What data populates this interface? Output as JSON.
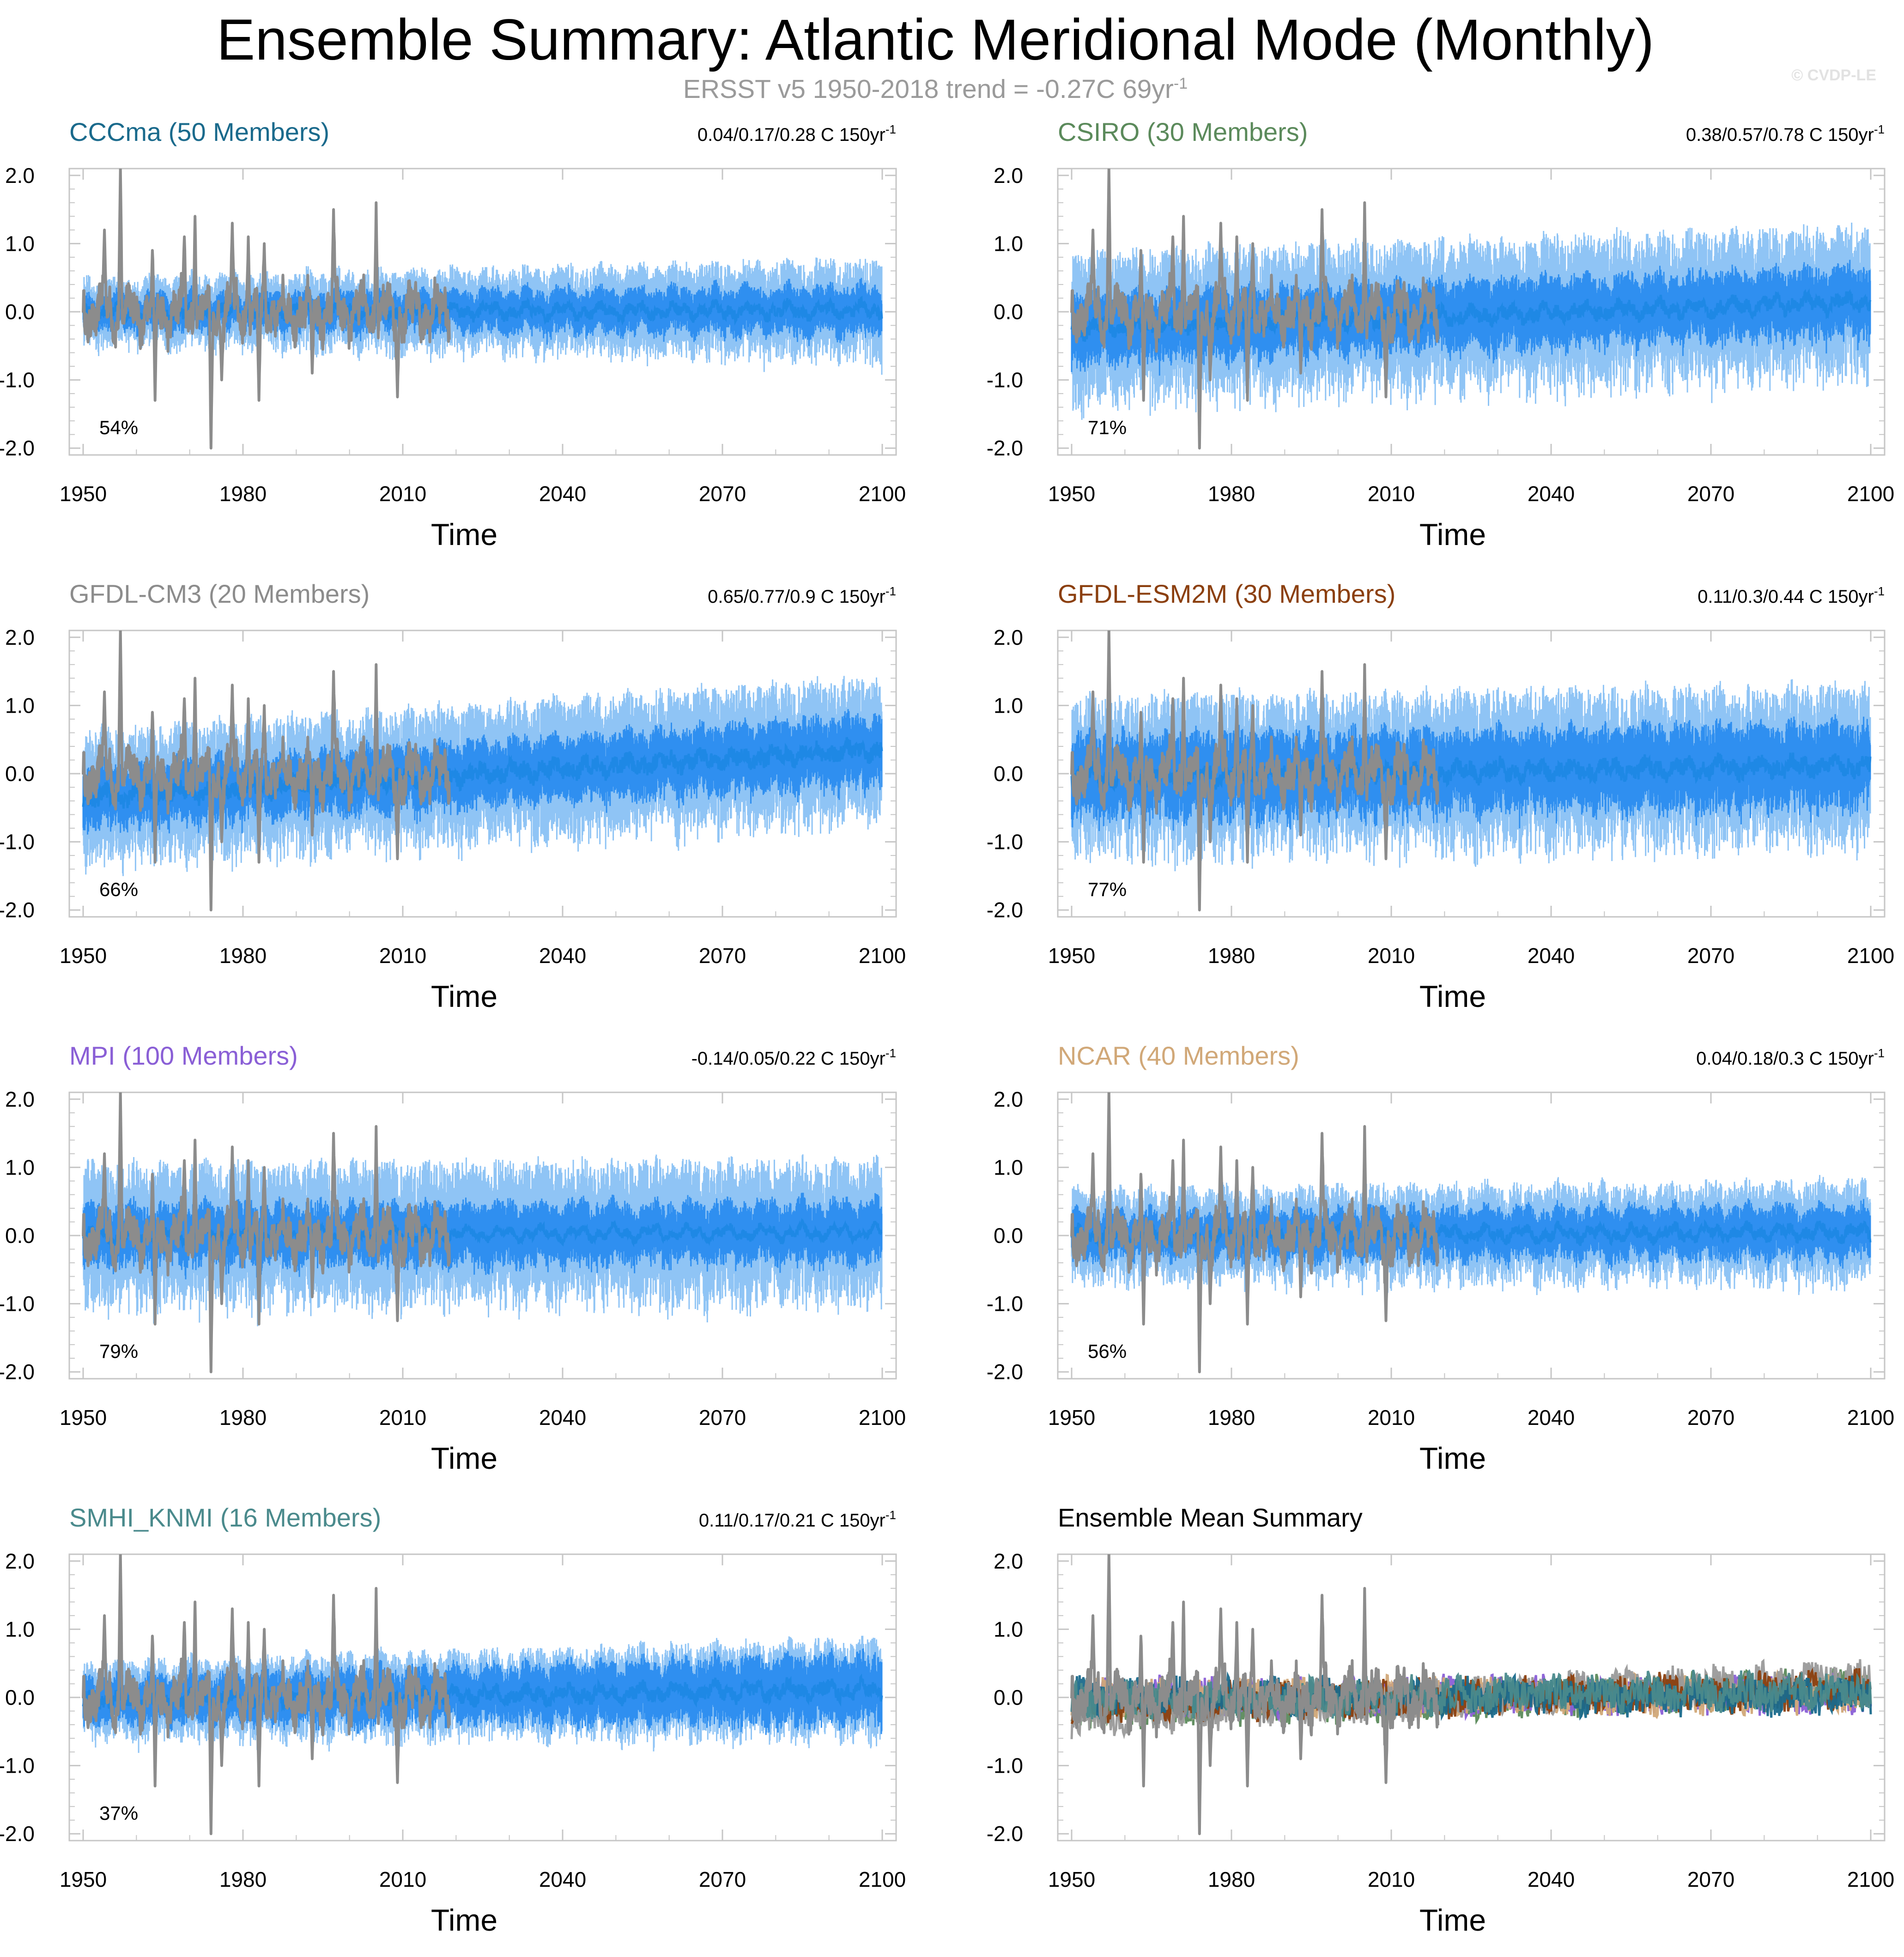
{
  "title": "Ensemble Summary: Atlantic Meridional Mode (Monthly)",
  "subtitle": {
    "text": "ERSST v5 1950-2018 trend = -0.27C 69yr",
    "sup": "-1"
  },
  "watermark": "© CVDP-LE",
  "colors": {
    "observed": "#8c8c8c",
    "ensemble_mean": "#1e88e5",
    "spread_inner": "#2f8ff0",
    "spread_outer": "#8fc4f5",
    "axis": "#c6c6c6"
  },
  "chart_data": [
    {
      "type": "line",
      "name": "CCCma (50 Members)",
      "title_color": "#1a6a8c",
      "stat_text": "0.04/0.17/0.28 C 150yr",
      "stat_sup": "-1",
      "pct": "54%",
      "xlabel": "Time",
      "ylabel": "",
      "xlim": [
        1950,
        2100
      ],
      "ylim": [
        -2.0,
        2.0
      ],
      "xticks": [
        1950,
        1980,
        2010,
        2040,
        2070,
        2100
      ],
      "yticks": [
        2.0,
        1.0,
        0.0,
        -1.0,
        -2.0
      ],
      "yticklabels": [
        "2.0",
        "1.0",
        "0.0",
        "-1.0",
        "-2.0"
      ],
      "ens_mean": {
        "start": 0.0,
        "end": 0.02,
        "noise": 0.08
      },
      "spread_inner": {
        "start": 0.22,
        "end": 0.32
      },
      "spread_outer": {
        "start": 0.4,
        "end": 0.6
      }
    },
    {
      "type": "line",
      "name": "CSIRO (30 Members)",
      "title_color": "#5b8a5b",
      "stat_text": "0.38/0.57/0.78 C 150yr",
      "stat_sup": "-1",
      "pct": "71%",
      "xlabel": "Time",
      "ylabel": "",
      "xlim": [
        1950,
        2100
      ],
      "ylim": [
        -2.0,
        2.0
      ],
      "xticks": [
        1950,
        1980,
        2010,
        2040,
        2070,
        2100
      ],
      "yticks": [
        2.0,
        1.0,
        0.0,
        -1.0,
        -2.0
      ],
      "yticklabels": [
        "2.0",
        "1.0",
        "0.0",
        "-1.0",
        "-2.0"
      ],
      "ens_mean": {
        "start": -0.25,
        "end": 0.15,
        "noise": 0.1
      },
      "spread_inner": {
        "start": 0.45,
        "end": 0.45
      },
      "spread_outer": {
        "start": 0.9,
        "end": 0.9
      }
    },
    {
      "type": "line",
      "name": "GFDL-CM3 (20 Members)",
      "title_color": "#8c8c8c",
      "stat_text": "0.65/0.77/0.9 C 150yr",
      "stat_sup": "-1",
      "pct": "66%",
      "xlabel": "Time",
      "ylabel": "",
      "xlim": [
        1950,
        2100
      ],
      "ylim": [
        -2.0,
        2.0
      ],
      "xticks": [
        1950,
        1980,
        2010,
        2040,
        2070,
        2100
      ],
      "yticks": [
        2.0,
        1.0,
        0.0,
        -1.0,
        -2.0
      ],
      "yticklabels": [
        "2.0",
        "1.0",
        "0.0",
        "-1.0",
        "-2.0"
      ],
      "ens_mean": {
        "start": -0.35,
        "end": 0.35,
        "noise": 0.12
      },
      "spread_inner": {
        "start": 0.4,
        "end": 0.45
      },
      "spread_outer": {
        "start": 0.8,
        "end": 0.85
      }
    },
    {
      "type": "line",
      "name": "GFDL-ESM2M (30 Members)",
      "title_color": "#8b3f0e",
      "stat_text": "0.11/0.3/0.44 C 150yr",
      "stat_sup": "-1",
      "pct": "77%",
      "xlabel": "Time",
      "ylabel": "",
      "xlim": [
        1950,
        2100
      ],
      "ylim": [
        -2.0,
        2.0
      ],
      "xticks": [
        1950,
        1980,
        2010,
        2040,
        2070,
        2100
      ],
      "yticks": [
        2.0,
        1.0,
        0.0,
        -1.0,
        -2.0
      ],
      "yticklabels": [
        "2.0",
        "1.0",
        "0.0",
        "-1.0",
        "-2.0"
      ],
      "ens_mean": {
        "start": -0.05,
        "end": 0.12,
        "noise": 0.12
      },
      "spread_inner": {
        "start": 0.55,
        "end": 0.55
      },
      "spread_outer": {
        "start": 0.95,
        "end": 0.95
      }
    },
    {
      "type": "line",
      "name": "MPI (100 Members)",
      "title_color": "#8a5fd6",
      "stat_text": "-0.14/0.05/0.22 C 150yr",
      "stat_sup": "-1",
      "pct": "79%",
      "xlabel": "Time",
      "ylabel": "",
      "xlim": [
        1950,
        2100
      ],
      "ylim": [
        -2.0,
        2.0
      ],
      "xticks": [
        1950,
        1980,
        2010,
        2040,
        2070,
        2100
      ],
      "yticks": [
        2.0,
        1.0,
        0.0,
        -1.0,
        -2.0
      ],
      "yticklabels": [
        "2.0",
        "1.0",
        "0.0",
        "-1.0",
        "-2.0"
      ],
      "ens_mean": {
        "start": 0.0,
        "end": 0.05,
        "noise": 0.06
      },
      "spread_inner": {
        "start": 0.4,
        "end": 0.4
      },
      "spread_outer": {
        "start": 0.85,
        "end": 0.85
      }
    },
    {
      "type": "line",
      "name": "NCAR (40 Members)",
      "title_color": "#d1a878",
      "stat_text": "0.04/0.18/0.3 C 150yr",
      "stat_sup": "-1",
      "pct": "56%",
      "xlabel": "Time",
      "ylabel": "",
      "xlim": [
        1950,
        2100
      ],
      "ylim": [
        -2.0,
        2.0
      ],
      "xticks": [
        1950,
        1980,
        2010,
        2040,
        2070,
        2100
      ],
      "yticks": [
        2.0,
        1.0,
        0.0,
        -1.0,
        -2.0
      ],
      "yticklabels": [
        "2.0",
        "1.0",
        "0.0",
        "-1.0",
        "-2.0"
      ],
      "ens_mean": {
        "start": 0.0,
        "end": 0.05,
        "noise": 0.08
      },
      "spread_inner": {
        "start": 0.3,
        "end": 0.35
      },
      "spread_outer": {
        "start": 0.55,
        "end": 0.6
      }
    },
    {
      "type": "line",
      "name": "SMHI_KNMI (16 Members)",
      "title_color": "#4a8a8c",
      "stat_text": "0.11/0.17/0.21 C 150yr",
      "stat_sup": "-1",
      "pct": "37%",
      "xlabel": "Time",
      "ylabel": "",
      "xlim": [
        1950,
        2100
      ],
      "ylim": [
        -2.0,
        2.0
      ],
      "xticks": [
        1950,
        1980,
        2010,
        2040,
        2070,
        2100
      ],
      "yticks": [
        2.0,
        1.0,
        0.0,
        -1.0,
        -2.0
      ],
      "yticklabels": [
        "2.0",
        "1.0",
        "0.0",
        "-1.0",
        "-2.0"
      ],
      "ens_mean": {
        "start": -0.05,
        "end": 0.12,
        "noise": 0.1
      },
      "spread_inner": {
        "start": 0.3,
        "end": 0.45
      },
      "spread_outer": {
        "start": 0.45,
        "end": 0.6
      }
    },
    {
      "type": "line",
      "name": "Ensemble Mean Summary",
      "title_color": "#000000",
      "stat_text": "",
      "stat_sup": "",
      "pct": "",
      "xlabel": "Time",
      "ylabel": "",
      "xlim": [
        1950,
        2100
      ],
      "ylim": [
        -2.0,
        2.0
      ],
      "xticks": [
        1950,
        1980,
        2010,
        2040,
        2070,
        2100
      ],
      "yticks": [
        2.0,
        1.0,
        0.0,
        -1.0,
        -2.0
      ],
      "yticklabels": [
        "2.0",
        "1.0",
        "0.0",
        "-1.0",
        "-2.0"
      ],
      "summary_series": [
        {
          "name": "CSIRO",
          "color": "#5b8a5b",
          "start": -0.2,
          "end": 0.15
        },
        {
          "name": "MPI",
          "color": "#8a5fd6",
          "start": 0.0,
          "end": 0.05
        },
        {
          "name": "NCAR",
          "color": "#d1a878",
          "start": 0.0,
          "end": 0.05
        },
        {
          "name": "GFDL-CM3",
          "color": "#9a9a9a",
          "start": -0.3,
          "end": 0.3
        },
        {
          "name": "GFDL-ESM2M",
          "color": "#8b3f0e",
          "start": -0.1,
          "end": 0.12
        },
        {
          "name": "CCCma",
          "color": "#1a6a8c",
          "start": 0.0,
          "end": 0.02
        },
        {
          "name": "SMHI_KNMI",
          "color": "#4a8a8c",
          "start": -0.05,
          "end": 0.12
        }
      ]
    }
  ],
  "observed": {
    "name": "ERSST v5",
    "xlim": [
      1950,
      2018
    ],
    "peaks": [
      [
        1954,
        1.2
      ],
      [
        1957,
        2.1
      ],
      [
        1963,
        0.9
      ],
      [
        1969,
        1.1
      ],
      [
        1971,
        1.4
      ],
      [
        1978,
        1.3
      ],
      [
        1981,
        1.1
      ],
      [
        1984,
        1.0
      ],
      [
        1997,
        1.5
      ],
      [
        2005,
        1.6
      ]
    ],
    "troughs": [
      [
        1963.5,
        -1.3
      ],
      [
        1974,
        -2.0
      ],
      [
        1976,
        -1.0
      ],
      [
        1983,
        -1.3
      ],
      [
        1993,
        -0.9
      ],
      [
        2009,
        -1.25
      ]
    ]
  }
}
